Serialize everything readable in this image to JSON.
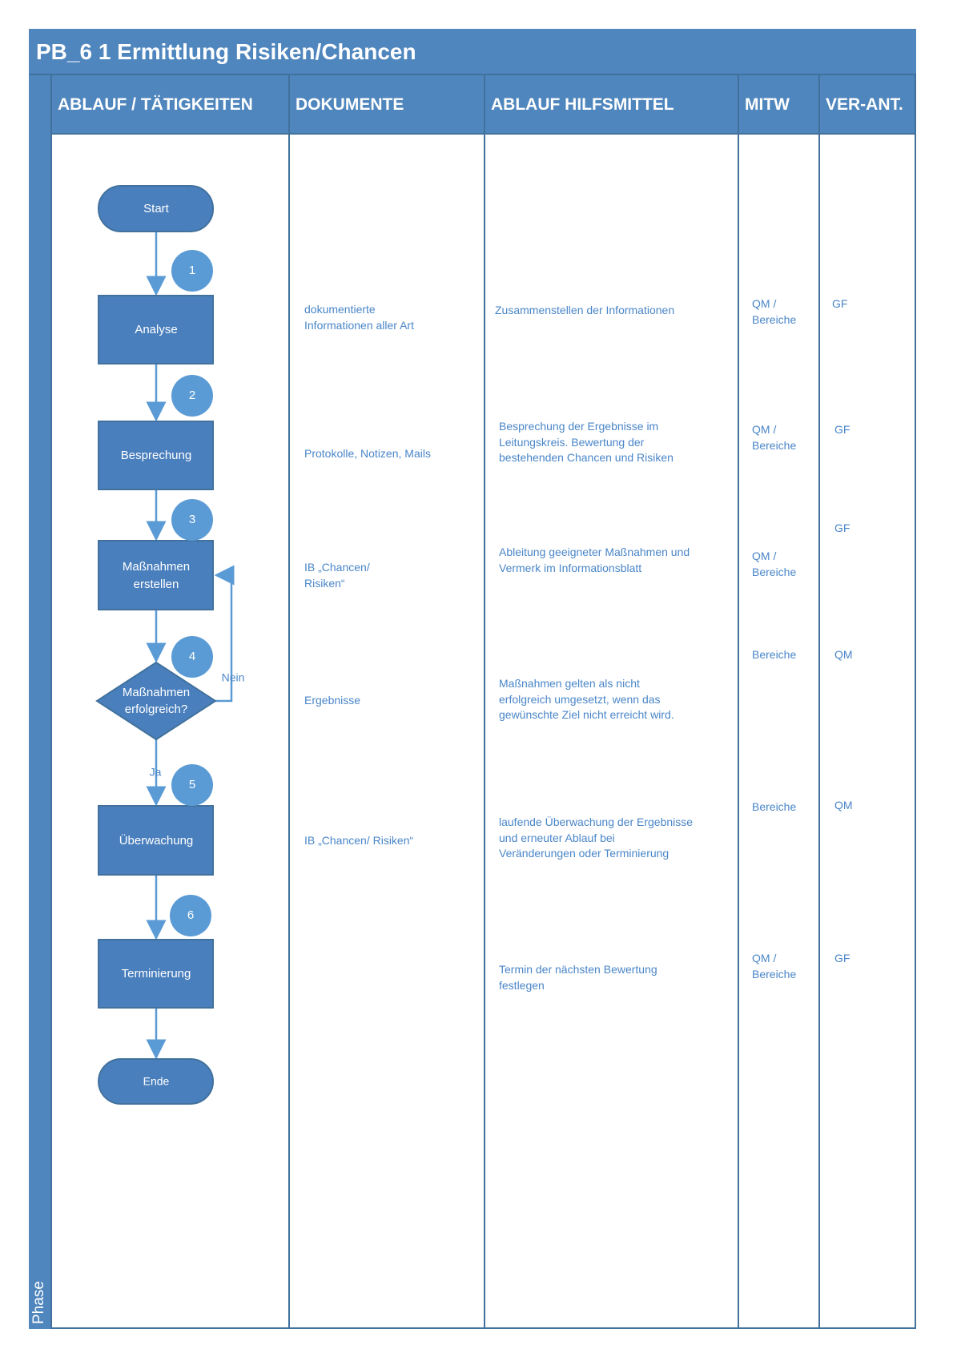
{
  "title": "PB_6 1 Ermittlung Risiken/Chancen",
  "phase_label": "Phase",
  "columns": [
    "ABLAUF / TÄTIGKEITEN",
    "DOKUMENTE",
    "ABLAUF HILFSMITTEL",
    "MITW",
    "VER-ANT."
  ],
  "colors": {
    "header": "#4f86bd",
    "border": "#41719c",
    "shape": "#4a7fbd",
    "circle": "#5b9bd5",
    "text": "#4a86c8"
  },
  "flow": {
    "start": "Start",
    "end": "Ende",
    "steps": [
      "Analyse",
      "Besprechung",
      "Maßnahmen erstellen",
      "Maßnahmen erfolgreich?",
      "Überwachung",
      "Terminierung"
    ],
    "step_numbers": [
      "1",
      "2",
      "3",
      "4",
      "5",
      "6"
    ],
    "no_label": "Nein",
    "yes_label": "Ja"
  },
  "rows": [
    {
      "dokumente": "dokumentierte\nInformationen aller Art",
      "hilfsmittel": "Zusammenstellen der Informationen",
      "mitw": "QM /\nBereiche",
      "verant": "GF"
    },
    {
      "dokumente": "Protokolle, Notizen, Mails",
      "hilfsmittel": "Besprechung der Ergebnisse im\nLeitungskreis. Bewertung der\nbestehenden Chancen und Risiken",
      "mitw": "QM /\nBereiche",
      "verant": "GF"
    },
    {
      "dokumente": "IB „Chancen/\nRisiken“",
      "hilfsmittel": "Ableitung geeigneter Maßnahmen und\nVermerk im Informationsblatt",
      "mitw": "QM /\nBereiche",
      "verant": "GF"
    },
    {
      "dokumente": "Ergebnisse",
      "hilfsmittel": "Maßnahmen gelten als nicht\nerfolgreich umgesetzt, wenn das\ngewünschte Ziel nicht erreicht wird.",
      "mitw": "Bereiche",
      "verant": "QM"
    },
    {
      "dokumente": "IB „Chancen/ Risiken“",
      "hilfsmittel": "laufende Überwachung der Ergebnisse\nund erneuter Ablauf bei\nVeränderungen oder Terminierung",
      "mitw": "Bereiche",
      "verant": "QM"
    },
    {
      "dokumente": "",
      "hilfsmittel": "Termin der nächsten Bewertung\nfestlegen",
      "mitw": "QM /\nBereiche",
      "verant": "GF"
    }
  ]
}
